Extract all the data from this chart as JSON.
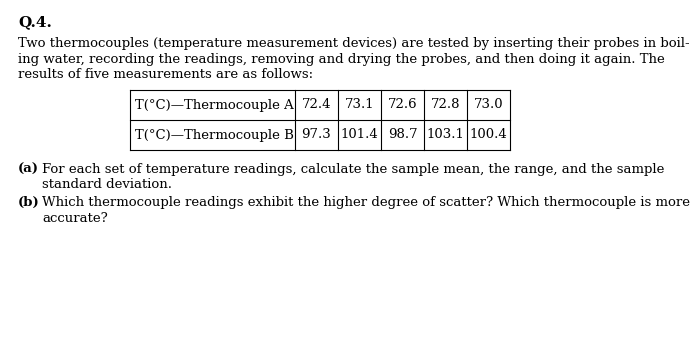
{
  "title": "Q.4.",
  "para_line1": "Two thermocouples (temperature measurement devices) are tested by inserting their probes in boil-",
  "para_line2": "ing water, recording the readings, removing and drying the probes, and then doing it again. The",
  "para_line3": "results of five measurements are as follows:",
  "table_row1_label": "T(°C)—Thermocouple A",
  "table_row2_label": "T(°C)—Thermocouple B",
  "table_row1_values": [
    "72.4",
    "73.1",
    "72.6",
    "72.8",
    "73.0"
  ],
  "table_row2_values": [
    "97.3",
    "101.4",
    "98.7",
    "103.1",
    "100.4"
  ],
  "part_a_label": "(a)",
  "part_a_line1": "For each set of temperature readings, calculate the sample mean, the range, and the sample",
  "part_a_line2": "standard deviation.",
  "part_b_label": "(b)",
  "part_b_line1": "Which thermocouple readings exhibit the higher degree of scatter? Which thermocouple is more",
  "part_b_line2": "accurate?",
  "bg_color": "#ffffff",
  "text_color": "#000000",
  "font_size": 9.5,
  "title_font_size": 11
}
